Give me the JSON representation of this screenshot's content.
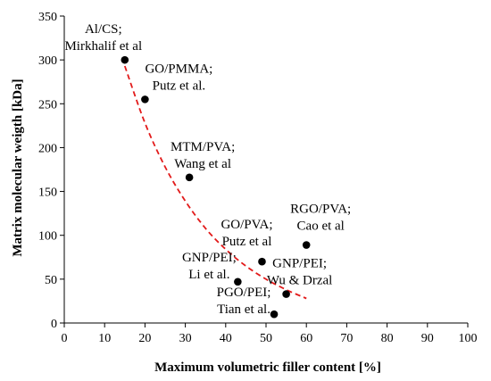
{
  "chart_data": {
    "type": "scatter",
    "title": "",
    "xlabel": "Maximum volumetric filler content [%]",
    "ylabel": "Matrix molecular weigth [kDa]",
    "xlim": [
      0,
      100
    ],
    "ylim": [
      0,
      350
    ],
    "xticks": [
      0,
      10,
      20,
      30,
      40,
      50,
      60,
      70,
      80,
      90,
      100
    ],
    "yticks": [
      0,
      50,
      100,
      150,
      200,
      250,
      300,
      350
    ],
    "grid": false,
    "points": [
      {
        "x": 15,
        "y": 300,
        "label_lines": [
          "Al/CS;",
          "Mirkhalif et al"
        ]
      },
      {
        "x": 20,
        "y": 255,
        "label_lines": [
          "GO/PMMA;",
          "Putz et al."
        ]
      },
      {
        "x": 31,
        "y": 166,
        "label_lines": [
          "MTM/PVA;",
          "Wang et al"
        ]
      },
      {
        "x": 49,
        "y": 70,
        "label_lines": [
          "GO/PVA;",
          "Putz et al"
        ]
      },
      {
        "x": 60,
        "y": 89,
        "label_lines": [
          "RGO/PVA;",
          "Cao et al"
        ]
      },
      {
        "x": 43,
        "y": 47,
        "label_lines": [
          "GNP/PEI;",
          "Li et al."
        ]
      },
      {
        "x": 55,
        "y": 33,
        "label_lines": [
          "GNP/PEI;",
          "Wu & Drzal"
        ]
      },
      {
        "x": 52,
        "y": 10,
        "label_lines": [
          "PGO/PEI;",
          "Tian et al."
        ]
      }
    ],
    "trendline": {
      "style": "dashed",
      "color": "#e21a1a",
      "x_range": [
        15,
        60
      ],
      "points": [
        [
          15,
          293
        ],
        [
          20,
          228
        ],
        [
          25,
          178
        ],
        [
          30,
          139
        ],
        [
          35,
          108
        ],
        [
          40,
          84
        ],
        [
          45,
          65
        ],
        [
          50,
          50
        ],
        [
          55,
          38
        ],
        [
          60,
          28
        ]
      ]
    },
    "marker_color": "#000000"
  }
}
